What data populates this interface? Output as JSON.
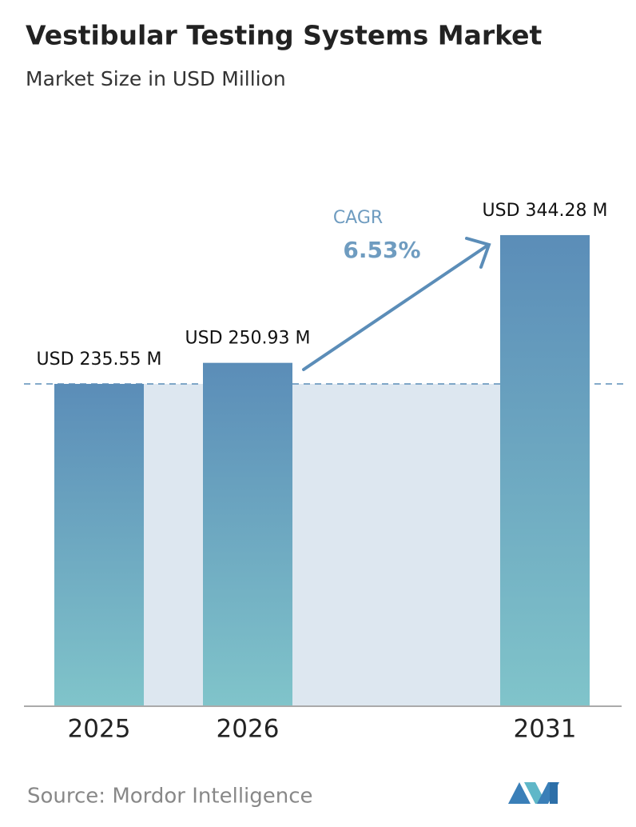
{
  "chart_data": {
    "type": "bar",
    "title": "Vestibular Testing Systems Market",
    "subtitle": "Market Size in USD Million",
    "categories": [
      "2025",
      "2026",
      "2031"
    ],
    "values": [
      235.55,
      250.93,
      344.28
    ],
    "value_labels": [
      "USD 235.55 M",
      "USD 250.93 M",
      "USD 344.28 M"
    ],
    "color": "#5b8db8",
    "cagr_label": "CAGR",
    "cagr": "6.53%",
    "source": "Source:  Mordor Intelligence"
  }
}
